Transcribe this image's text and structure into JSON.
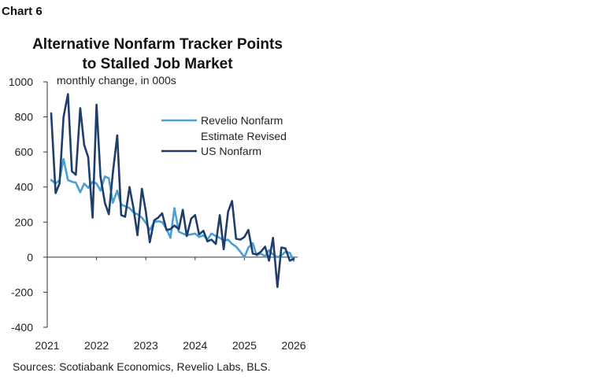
{
  "header": {
    "chart_label": "Chart 6",
    "title": "Alternative Nonfarm Tracker Points to Stalled Job Market"
  },
  "footer": {
    "source": "Sources: Scotiabank Economics, Revelio Labs, BLS."
  },
  "chart_data": {
    "type": "line",
    "title": "Alternative Nonfarm Tracker Points to Stalled Job Market",
    "unit_label": "monthly change, in 000s",
    "xlabel": "",
    "ylabel": "",
    "xlim": [
      2021,
      2026.08
    ],
    "ylim": [
      -400,
      1000
    ],
    "yticks": [
      -400,
      -200,
      0,
      200,
      400,
      600,
      800,
      1000
    ],
    "xticks": [
      2021,
      2022,
      2023,
      2024,
      2025,
      2026
    ],
    "grid": false,
    "legend_position": "right",
    "colors": {
      "revelio": "#4a9fd4",
      "us_nonfarm": "#1f3d6b"
    },
    "series": [
      {
        "name": "Revelio Nonfarm Estimate Revised",
        "color": "#4a9fd4",
        "x": [
          2021.08,
          2021.17,
          2021.25,
          2021.33,
          2021.42,
          2021.5,
          2021.58,
          2021.67,
          2021.75,
          2021.83,
          2021.92,
          2022.0,
          2022.08,
          2022.17,
          2022.25,
          2022.33,
          2022.42,
          2022.5,
          2022.58,
          2022.67,
          2022.75,
          2022.83,
          2022.92,
          2023.0,
          2023.08,
          2023.17,
          2023.25,
          2023.33,
          2023.42,
          2023.5,
          2023.58,
          2023.67,
          2023.75,
          2023.83,
          2023.92,
          2024.0,
          2024.08,
          2024.17,
          2024.25,
          2024.33,
          2024.42,
          2024.5,
          2024.58,
          2024.67,
          2024.75,
          2024.83,
          2024.92,
          2025.0,
          2025.08,
          2025.17,
          2025.25,
          2025.33,
          2025.42,
          2025.5,
          2025.58,
          2025.67,
          2025.75,
          2025.83,
          2025.92,
          2026.0
        ],
        "values": [
          440,
          420,
          440,
          560,
          440,
          430,
          425,
          370,
          420,
          395,
          430,
          420,
          380,
          460,
          450,
          310,
          380,
          300,
          290,
          280,
          255,
          245,
          225,
          195,
          155,
          200,
          205,
          200,
          160,
          110,
          280,
          145,
          135,
          125,
          130,
          135,
          115,
          125,
          100,
          135,
          120,
          110,
          95,
          100,
          75,
          60,
          30,
          0,
          55,
          80,
          10,
          20,
          5,
          40,
          15,
          0,
          10,
          30,
          25,
          -20
        ]
      },
      {
        "name": "US Nonfarm",
        "color": "#1f3d6b",
        "x": [
          2021.08,
          2021.17,
          2021.25,
          2021.33,
          2021.42,
          2021.5,
          2021.58,
          2021.67,
          2021.75,
          2021.83,
          2021.92,
          2022.0,
          2022.08,
          2022.17,
          2022.25,
          2022.33,
          2022.42,
          2022.5,
          2022.58,
          2022.67,
          2022.75,
          2022.83,
          2022.92,
          2023.0,
          2023.08,
          2023.17,
          2023.25,
          2023.33,
          2023.42,
          2023.5,
          2023.58,
          2023.67,
          2023.75,
          2023.83,
          2023.92,
          2024.0,
          2024.08,
          2024.17,
          2024.25,
          2024.33,
          2024.42,
          2024.5,
          2024.58,
          2024.67,
          2024.75,
          2024.83,
          2024.92,
          2025.0,
          2025.08,
          2025.17,
          2025.25,
          2025.33,
          2025.42,
          2025.5,
          2025.58,
          2025.67,
          2025.75,
          2025.83,
          2025.92,
          2026.0
        ],
        "values": [
          820,
          365,
          420,
          800,
          930,
          490,
          470,
          850,
          640,
          570,
          225,
          870,
          460,
          310,
          245,
          480,
          695,
          240,
          230,
          400,
          280,
          125,
          390,
          260,
          85,
          210,
          225,
          250,
          155,
          160,
          180,
          160,
          270,
          120,
          220,
          240,
          130,
          150,
          90,
          100,
          75,
          240,
          45,
          260,
          320,
          105,
          100,
          115,
          155,
          20,
          15,
          30,
          60,
          -20,
          110,
          -170,
          55,
          50,
          -20,
          -10
        ]
      }
    ]
  }
}
